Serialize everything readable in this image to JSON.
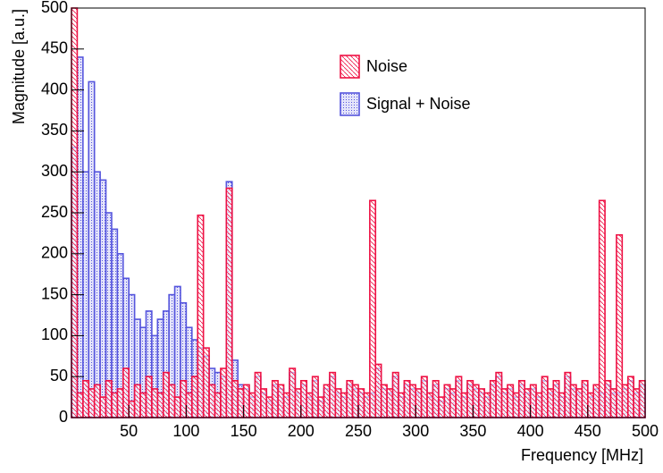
{
  "chart_data": {
    "type": "histogram",
    "x_label": "Frequency [MHz]",
    "y_label": "Magnitude [a.u.]",
    "bins": [
      0,
      5,
      10,
      15,
      20,
      25,
      30,
      35,
      40,
      45,
      50,
      55,
      60,
      65,
      70,
      75,
      80,
      85,
      90,
      95,
      100,
      105,
      110,
      115,
      120,
      125,
      130,
      135,
      140,
      145,
      150,
      155,
      160,
      165,
      170,
      175,
      180,
      185,
      190,
      195,
      200,
      205,
      210,
      215,
      220,
      225,
      230,
      235,
      240,
      245,
      250,
      255,
      260,
      265,
      270,
      275,
      280,
      285,
      290,
      295,
      300,
      305,
      310,
      315,
      320,
      325,
      330,
      335,
      340,
      345,
      350,
      355,
      360,
      365,
      370,
      375,
      380,
      385,
      390,
      395,
      400,
      405,
      410,
      415,
      420,
      425,
      430,
      435,
      440,
      445,
      450,
      455,
      460,
      465,
      470,
      475,
      480,
      485,
      490,
      495,
      500
    ],
    "series": [
      {
        "name": "Signal + Noise",
        "color": "#5555dd",
        "pattern": "dots",
        "values": [
          330,
          440,
          300,
          410,
          300,
          290,
          250,
          230,
          200,
          170,
          150,
          120,
          110,
          130,
          100,
          120,
          130,
          150,
          160,
          140,
          110,
          95,
          85,
          75,
          60,
          55,
          50,
          288,
          70,
          40,
          35,
          25,
          50,
          30,
          20,
          40,
          35,
          25,
          55,
          30,
          40,
          25,
          45,
          20,
          35,
          50,
          30,
          25,
          40,
          35,
          30,
          25,
          30,
          60,
          35,
          30,
          50,
          25,
          40,
          35,
          30,
          45,
          25,
          40,
          20,
          35,
          30,
          45,
          25,
          40,
          35,
          30,
          25,
          40,
          50,
          30,
          35,
          25,
          40,
          30,
          35,
          25,
          45,
          30,
          40,
          25,
          50,
          35,
          30,
          40,
          25,
          35,
          30,
          40,
          30,
          30,
          35,
          45,
          30,
          40
        ]
      },
      {
        "name": "Noise",
        "color": "#ee1144",
        "pattern": "hatch",
        "values": [
          500,
          30,
          45,
          35,
          40,
          25,
          45,
          30,
          35,
          60,
          20,
          40,
          30,
          50,
          35,
          30,
          55,
          40,
          25,
          45,
          30,
          50,
          247,
          85,
          40,
          30,
          60,
          280,
          45,
          35,
          40,
          30,
          55,
          35,
          25,
          45,
          40,
          30,
          60,
          35,
          45,
          30,
          50,
          25,
          40,
          55,
          35,
          30,
          45,
          40,
          35,
          30,
          265,
          65,
          40,
          35,
          55,
          30,
          45,
          40,
          35,
          50,
          30,
          45,
          25,
          40,
          35,
          50,
          30,
          45,
          40,
          35,
          30,
          45,
          55,
          35,
          40,
          30,
          45,
          35,
          40,
          30,
          50,
          35,
          45,
          30,
          55,
          40,
          35,
          45,
          30,
          40,
          265,
          45,
          35,
          223,
          40,
          50,
          35,
          45
        ]
      }
    ],
    "xlim": [
      0,
      500
    ],
    "xticks": [
      50,
      100,
      150,
      200,
      250,
      300,
      350,
      400,
      450,
      500
    ],
    "ylim": [
      0,
      500
    ],
    "yticks": [
      0,
      50,
      100,
      150,
      200,
      250,
      300,
      350,
      400,
      450,
      500
    ],
    "legend": "top-center"
  }
}
